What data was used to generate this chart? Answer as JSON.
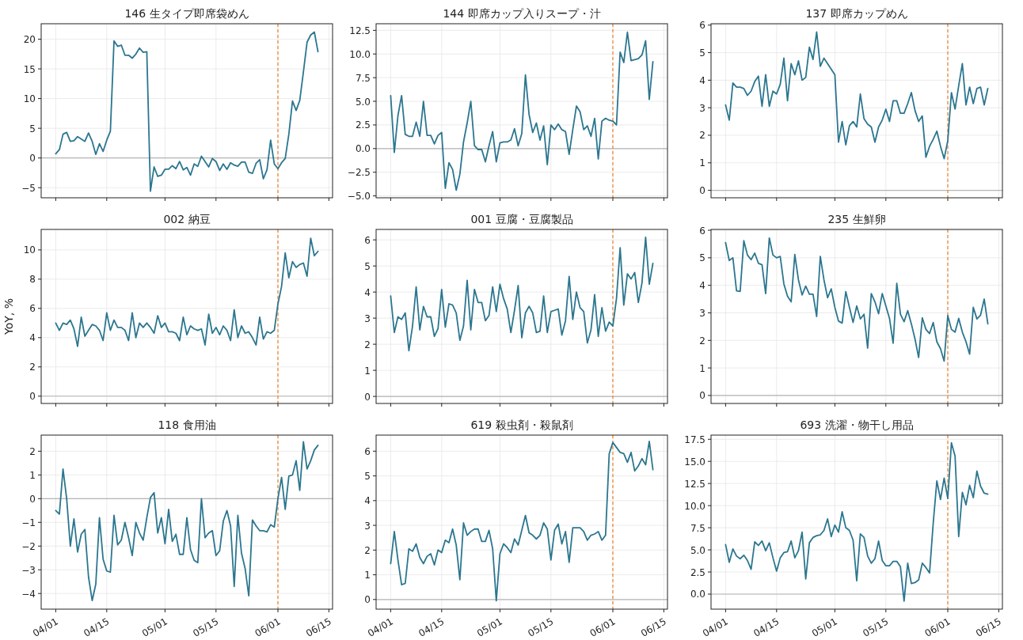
{
  "chart_data": [
    {
      "type": "line",
      "title": "146 生タイプ即席袋めん",
      "tick_labels": "y",
      "grid": true,
      "xlim": [
        "--03-28",
        "--06-16"
      ],
      "ylim": [
        -6.7,
        22.6
      ],
      "xticks": [
        {
          "value": "--04-01",
          "label": null
        },
        {
          "value": "--04-15",
          "label": null
        },
        {
          "value": "--05-01",
          "label": null
        },
        {
          "value": "--05-15",
          "label": null
        },
        {
          "value": "--06-01",
          "label": null
        },
        {
          "value": "--06-15",
          "label": null
        }
      ],
      "yticks": [
        {
          "value": -5,
          "label": "−5"
        },
        0,
        5,
        10,
        15,
        20
      ],
      "ref_lines": [
        {
          "axis": "y",
          "value": 0,
          "color": "#b5b5b5"
        },
        {
          "axis": "x",
          "value": "--06-01",
          "color": "#ee8833",
          "line_style": "dashed"
        }
      ],
      "x": [
        "--04-01",
        "--04-02",
        "--04-03",
        "--04-04",
        "--04-05",
        "--04-06",
        "--04-07",
        "--04-08",
        "--04-09",
        "--04-10",
        "--04-11",
        "--04-12",
        "--04-13",
        "--04-14",
        "--04-15",
        "--04-16",
        "--04-17",
        "--04-18",
        "--04-19",
        "--04-20",
        "--04-21",
        "--04-22",
        "--04-23",
        "--04-24",
        "--04-25",
        "--04-26",
        "--04-27",
        "--04-28",
        "--04-29",
        "--04-30",
        "--05-01",
        "--05-02",
        "--05-03",
        "--05-04",
        "--05-05",
        "--05-06",
        "--05-07",
        "--05-08",
        "--05-09",
        "--05-10",
        "--05-11",
        "--05-12",
        "--05-13",
        "--05-14",
        "--05-15",
        "--05-16",
        "--05-17",
        "--05-18",
        "--05-19",
        "--05-20",
        "--05-21",
        "--05-22",
        "--05-23",
        "--05-24",
        "--05-25",
        "--05-26",
        "--05-27",
        "--05-28",
        "--05-29",
        "--05-30",
        "--05-31",
        "--06-01",
        "--06-02",
        "--06-03",
        "--06-04",
        "--06-05",
        "--06-06",
        "--06-07",
        "--06-08",
        "--06-09",
        "--06-10",
        "--06-11",
        "--06-12"
      ],
      "series": [
        {
          "color": "#2b768f",
          "values": [
            0.7,
            1.4,
            4.0,
            4.3,
            2.8,
            2.9,
            3.6,
            3.2,
            2.8,
            4.2,
            2.8,
            0.6,
            2.4,
            1.1,
            3.0,
            4.5,
            19.7,
            18.8,
            19.0,
            17.3,
            17.3,
            16.8,
            17.5,
            18.5,
            17.8,
            17.9,
            -5.6,
            -1.5,
            -3.1,
            -2.9,
            -1.9,
            -1.9,
            -1.3,
            -1.8,
            -0.6,
            -2.0,
            -1.6,
            -2.9,
            -1.0,
            -1.4,
            0.3,
            -0.6,
            -1.5,
            -0.1,
            -0.6,
            -2.1,
            -1.0,
            -1.9,
            -0.8,
            -1.2,
            -1.4,
            -0.7,
            -0.7,
            -2.4,
            -2.6,
            -0.9,
            -0.3,
            -3.5,
            -2.0,
            3.0,
            -1.0,
            -1.8,
            -0.8,
            -0.1,
            4.0,
            9.6,
            8.0,
            9.7,
            14.5,
            19.5,
            20.7,
            21.2,
            17.9
          ]
        }
      ]
    },
    {
      "type": "line",
      "title": "144 即席カップ入りスープ・汁",
      "tick_labels": "y",
      "grid": true,
      "xlim": [
        "--03-28",
        "--06-16"
      ],
      "ylim": [
        -5.2,
        13.2
      ],
      "xticks": [
        {
          "value": "--04-01",
          "label": null
        },
        {
          "value": "--04-15",
          "label": null
        },
        {
          "value": "--05-01",
          "label": null
        },
        {
          "value": "--05-15",
          "label": null
        },
        {
          "value": "--06-01",
          "label": null
        },
        {
          "value": "--06-15",
          "label": null
        }
      ],
      "yticks": [
        {
          "value": -5,
          "label": "−5.0"
        },
        {
          "value": -2.5,
          "label": "−2.5"
        },
        {
          "value": 0,
          "label": "0.0"
        },
        {
          "value": 2.5,
          "label": "2.5"
        },
        {
          "value": 5,
          "label": "5.0"
        },
        {
          "value": 7.5,
          "label": "7.5"
        },
        {
          "value": 10,
          "label": "10.0"
        },
        {
          "value": 12.5,
          "label": "12.5"
        }
      ],
      "ref_lines": [
        {
          "axis": "y",
          "value": 0,
          "color": "#b5b5b5"
        },
        {
          "axis": "x",
          "value": "--06-01",
          "color": "#ee8833",
          "line_style": "dashed"
        }
      ],
      "x": [
        "--04-01",
        "--04-02",
        "--04-03",
        "--04-04",
        "--04-05",
        "--04-06",
        "--04-07",
        "--04-08",
        "--04-09",
        "--04-10",
        "--04-11",
        "--04-12",
        "--04-13",
        "--04-14",
        "--04-15",
        "--04-16",
        "--04-17",
        "--04-18",
        "--04-19",
        "--04-20",
        "--04-21",
        "--04-22",
        "--04-23",
        "--04-24",
        "--04-25",
        "--04-26",
        "--04-27",
        "--04-28",
        "--04-29",
        "--04-30",
        "--05-01",
        "--05-02",
        "--05-03",
        "--05-04",
        "--05-05",
        "--05-06",
        "--05-07",
        "--05-08",
        "--05-09",
        "--05-10",
        "--05-11",
        "--05-12",
        "--05-13",
        "--05-14",
        "--05-15",
        "--05-16",
        "--05-17",
        "--05-18",
        "--05-19",
        "--05-20",
        "--05-21",
        "--05-22",
        "--05-23",
        "--05-24",
        "--05-25",
        "--05-26",
        "--05-27",
        "--05-28",
        "--05-29",
        "--05-30",
        "--05-31",
        "--06-01",
        "--06-02",
        "--06-03",
        "--06-04",
        "--06-05",
        "--06-06",
        "--06-07",
        "--06-08",
        "--06-09",
        "--06-10",
        "--06-11",
        "--06-12"
      ],
      "series": [
        {
          "color": "#2b768f",
          "values": [
            5.6,
            -0.4,
            3.5,
            5.6,
            1.5,
            1.3,
            1.3,
            2.8,
            1.3,
            5.0,
            1.4,
            1.4,
            0.5,
            1.4,
            1.7,
            -4.2,
            -1.5,
            -2.2,
            -4.4,
            -2.7,
            0.7,
            2.7,
            5.0,
            0.3,
            -0.1,
            -0.1,
            -1.4,
            0.3,
            1.8,
            -1.4,
            0.6,
            0.7,
            0.7,
            0.9,
            2.1,
            0.3,
            1.6,
            7.8,
            3.6,
            1.7,
            2.7,
            0.9,
            2.4,
            -1.7,
            2.5,
            2.0,
            2.6,
            2.0,
            1.8,
            -0.6,
            2.0,
            4.5,
            3.9,
            2.0,
            2.4,
            1.3,
            3.2,
            -1.1,
            2.9,
            3.2,
            3.0,
            2.9,
            2.5,
            10.2,
            9.1,
            12.3,
            9.3,
            9.4,
            9.5,
            9.9,
            11.4,
            5.2,
            9.2
          ]
        }
      ]
    },
    {
      "type": "line",
      "title": "137 即席カップめん",
      "tick_labels": "y",
      "grid": true,
      "xlim": [
        "--03-28",
        "--06-16"
      ],
      "ylim": [
        -0.27,
        6.05
      ],
      "xticks": [
        {
          "value": "--04-01",
          "label": null
        },
        {
          "value": "--04-15",
          "label": null
        },
        {
          "value": "--05-01",
          "label": null
        },
        {
          "value": "--05-15",
          "label": null
        },
        {
          "value": "--06-01",
          "label": null
        },
        {
          "value": "--06-15",
          "label": null
        }
      ],
      "yticks": [
        0,
        1,
        2,
        3,
        4,
        5,
        6
      ],
      "ref_lines": [
        {
          "axis": "y",
          "value": 0,
          "color": "#b5b5b5"
        },
        {
          "axis": "x",
          "value": "--06-01",
          "color": "#ee8833",
          "line_style": "dashed"
        }
      ],
      "x": [
        "--04-01",
        "--04-02",
        "--04-03",
        "--04-04",
        "--04-05",
        "--04-06",
        "--04-07",
        "--04-08",
        "--04-09",
        "--04-10",
        "--04-11",
        "--04-12",
        "--04-13",
        "--04-14",
        "--04-15",
        "--04-16",
        "--04-17",
        "--04-18",
        "--04-19",
        "--04-20",
        "--04-21",
        "--04-22",
        "--04-23",
        "--04-24",
        "--04-25",
        "--04-26",
        "--04-27",
        "--04-28",
        "--04-29",
        "--04-30",
        "--05-01",
        "--05-02",
        "--05-03",
        "--05-04",
        "--05-05",
        "--05-06",
        "--05-07",
        "--05-08",
        "--05-09",
        "--05-10",
        "--05-11",
        "--05-12",
        "--05-13",
        "--05-14",
        "--05-15",
        "--05-16",
        "--05-17",
        "--05-18",
        "--05-19",
        "--05-20",
        "--05-21",
        "--05-22",
        "--05-23",
        "--05-24",
        "--05-25",
        "--05-26",
        "--05-27",
        "--05-28",
        "--05-29",
        "--05-30",
        "--05-31",
        "--06-01",
        "--06-02",
        "--06-03",
        "--06-04",
        "--06-05",
        "--06-06",
        "--06-07",
        "--06-08",
        "--06-09",
        "--06-10",
        "--06-11",
        "--06-12"
      ],
      "series": [
        {
          "color": "#2b768f",
          "values": [
            3.1,
            2.55,
            3.9,
            3.75,
            3.75,
            3.7,
            3.45,
            3.6,
            3.95,
            4.15,
            3.05,
            4.2,
            3.05,
            3.6,
            3.5,
            3.85,
            4.8,
            3.25,
            4.6,
            4.2,
            4.7,
            4.0,
            4.1,
            5.2,
            4.75,
            5.75,
            4.5,
            4.8,
            4.6,
            4.4,
            4.2,
            1.75,
            2.5,
            1.65,
            2.35,
            2.5,
            2.3,
            3.5,
            2.6,
            2.4,
            2.3,
            1.75,
            2.3,
            2.55,
            2.95,
            2.5,
            3.25,
            3.25,
            2.8,
            2.8,
            3.15,
            3.55,
            2.9,
            2.5,
            2.7,
            1.2,
            1.6,
            1.85,
            2.15,
            1.6,
            1.15,
            1.8,
            3.55,
            2.95,
            3.8,
            4.6,
            3.1,
            3.75,
            3.15,
            3.7,
            3.75,
            3.1,
            3.7
          ]
        }
      ]
    },
    {
      "type": "line",
      "title": "002 納豆",
      "ylabel": "YoY, %",
      "tick_labels": "y",
      "grid": true,
      "xlim": [
        "--03-28",
        "--06-16"
      ],
      "ylim": [
        -0.5,
        11.4
      ],
      "xticks": [
        {
          "value": "--04-01",
          "label": null
        },
        {
          "value": "--04-15",
          "label": null
        },
        {
          "value": "--05-01",
          "label": null
        },
        {
          "value": "--05-15",
          "label": null
        },
        {
          "value": "--06-01",
          "label": null
        },
        {
          "value": "--06-15",
          "label": null
        }
      ],
      "yticks": [
        0,
        2,
        4,
        6,
        8,
        10
      ],
      "ref_lines": [
        {
          "axis": "y",
          "value": 0,
          "color": "#b5b5b5"
        },
        {
          "axis": "x",
          "value": "--06-01",
          "color": "#ee8833",
          "line_style": "dashed"
        }
      ],
      "x": [
        "--04-01",
        "--04-02",
        "--04-03",
        "--04-04",
        "--04-05",
        "--04-06",
        "--04-07",
        "--04-08",
        "--04-09",
        "--04-10",
        "--04-11",
        "--04-12",
        "--04-13",
        "--04-14",
        "--04-15",
        "--04-16",
        "--04-17",
        "--04-18",
        "--04-19",
        "--04-20",
        "--04-21",
        "--04-22",
        "--04-23",
        "--04-24",
        "--04-25",
        "--04-26",
        "--04-27",
        "--04-28",
        "--04-29",
        "--04-30",
        "--05-01",
        "--05-02",
        "--05-03",
        "--05-04",
        "--05-05",
        "--05-06",
        "--05-07",
        "--05-08",
        "--05-09",
        "--05-10",
        "--05-11",
        "--05-12",
        "--05-13",
        "--05-14",
        "--05-15",
        "--05-16",
        "--05-17",
        "--05-18",
        "--05-19",
        "--05-20",
        "--05-21",
        "--05-22",
        "--05-23",
        "--05-24",
        "--05-25",
        "--05-26",
        "--05-27",
        "--05-28",
        "--05-29",
        "--05-30",
        "--05-31",
        "--06-01",
        "--06-02",
        "--06-03",
        "--06-04",
        "--06-05",
        "--06-06",
        "--06-07",
        "--06-08",
        "--06-09",
        "--06-10",
        "--06-11",
        "--06-12"
      ],
      "series": [
        {
          "color": "#2b768f",
          "values": [
            5.0,
            4.5,
            5.0,
            4.9,
            5.2,
            4.6,
            3.4,
            5.4,
            4.1,
            4.5,
            4.9,
            4.8,
            4.5,
            3.8,
            5.7,
            4.5,
            5.2,
            4.7,
            4.7,
            4.5,
            3.8,
            5.7,
            4.0,
            5.0,
            4.7,
            5.0,
            4.7,
            4.3,
            5.5,
            4.7,
            5.0,
            4.4,
            4.4,
            4.3,
            3.8,
            5.4,
            4.2,
            4.8,
            4.6,
            4.5,
            4.6,
            3.5,
            5.6,
            4.3,
            4.7,
            4.2,
            4.8,
            4.5,
            3.8,
            5.9,
            4.0,
            4.8,
            4.3,
            4.4,
            4.0,
            3.5,
            5.4,
            3.9,
            4.4,
            4.3,
            4.5,
            6.3,
            7.5,
            9.8,
            8.1,
            9.2,
            8.8,
            9.0,
            9.1,
            8.2,
            10.8,
            9.6,
            9.9
          ]
        }
      ]
    },
    {
      "type": "line",
      "title": "001 豆腐・豆腐製品",
      "tick_labels": "y",
      "grid": true,
      "xlim": [
        "--03-28",
        "--06-16"
      ],
      "ylim": [
        -0.27,
        6.4
      ],
      "xticks": [
        {
          "value": "--04-01",
          "label": null
        },
        {
          "value": "--04-15",
          "label": null
        },
        {
          "value": "--05-01",
          "label": null
        },
        {
          "value": "--05-15",
          "label": null
        },
        {
          "value": "--06-01",
          "label": null
        },
        {
          "value": "--06-15",
          "label": null
        }
      ],
      "yticks": [
        0,
        1,
        2,
        3,
        4,
        5,
        6
      ],
      "ref_lines": [
        {
          "axis": "y",
          "value": 0,
          "color": "#b5b5b5"
        },
        {
          "axis": "x",
          "value": "--06-01",
          "color": "#ee8833",
          "line_style": "dashed"
        }
      ],
      "x": [
        "--04-01",
        "--04-02",
        "--04-03",
        "--04-04",
        "--04-05",
        "--04-06",
        "--04-07",
        "--04-08",
        "--04-09",
        "--04-10",
        "--04-11",
        "--04-12",
        "--04-13",
        "--04-14",
        "--04-15",
        "--04-16",
        "--04-17",
        "--04-18",
        "--04-19",
        "--04-20",
        "--04-21",
        "--04-22",
        "--04-23",
        "--04-24",
        "--04-25",
        "--04-26",
        "--04-27",
        "--04-28",
        "--04-29",
        "--04-30",
        "--05-01",
        "--05-02",
        "--05-03",
        "--05-04",
        "--05-05",
        "--05-06",
        "--05-07",
        "--05-08",
        "--05-09",
        "--05-10",
        "--05-11",
        "--05-12",
        "--05-13",
        "--05-14",
        "--05-15",
        "--05-16",
        "--05-17",
        "--05-18",
        "--05-19",
        "--05-20",
        "--05-21",
        "--05-22",
        "--05-23",
        "--05-24",
        "--05-25",
        "--05-26",
        "--05-27",
        "--05-28",
        "--05-29",
        "--05-30",
        "--05-31",
        "--06-01",
        "--06-02",
        "--06-03",
        "--06-04",
        "--06-05",
        "--06-06",
        "--06-07",
        "--06-08",
        "--06-09",
        "--06-10",
        "--06-11",
        "--06-12"
      ],
      "series": [
        {
          "color": "#2b768f",
          "values": [
            3.85,
            2.45,
            3.05,
            2.95,
            3.2,
            1.75,
            2.7,
            4.2,
            2.55,
            3.45,
            3.05,
            3.05,
            2.3,
            2.6,
            4.1,
            2.65,
            3.55,
            3.5,
            3.2,
            2.15,
            2.7,
            4.45,
            2.55,
            4.1,
            3.6,
            3.6,
            2.9,
            3.1,
            4.2,
            3.25,
            4.3,
            3.75,
            3.35,
            2.45,
            3.3,
            4.25,
            2.25,
            3.2,
            3.45,
            3.2,
            2.45,
            2.5,
            3.85,
            2.45,
            3.25,
            3.3,
            3.35,
            2.35,
            2.9,
            4.6,
            2.95,
            4.0,
            3.4,
            3.25,
            2.05,
            2.55,
            3.9,
            2.3,
            3.4,
            2.5,
            2.85,
            2.7,
            3.75,
            5.7,
            3.5,
            4.7,
            4.5,
            4.75,
            3.6,
            4.35,
            6.1,
            4.3,
            5.1
          ]
        }
      ]
    },
    {
      "type": "line",
      "title": "235 生鮮卵",
      "tick_labels": "y",
      "grid": true,
      "xlim": [
        "--03-28",
        "--06-16"
      ],
      "ylim": [
        -0.29,
        6.03
      ],
      "xticks": [
        {
          "value": "--04-01",
          "label": null
        },
        {
          "value": "--04-15",
          "label": null
        },
        {
          "value": "--05-01",
          "label": null
        },
        {
          "value": "--05-15",
          "label": null
        },
        {
          "value": "--06-01",
          "label": null
        },
        {
          "value": "--06-15",
          "label": null
        }
      ],
      "yticks": [
        0,
        1,
        2,
        3,
        4,
        5,
        6
      ],
      "ref_lines": [
        {
          "axis": "y",
          "value": 0,
          "color": "#b5b5b5"
        },
        {
          "axis": "x",
          "value": "--06-01",
          "color": "#ee8833",
          "line_style": "dashed"
        }
      ],
      "x": [
        "--04-01",
        "--04-02",
        "--04-03",
        "--04-04",
        "--04-05",
        "--04-06",
        "--04-07",
        "--04-08",
        "--04-09",
        "--04-10",
        "--04-11",
        "--04-12",
        "--04-13",
        "--04-14",
        "--04-15",
        "--04-16",
        "--04-17",
        "--04-18",
        "--04-19",
        "--04-20",
        "--04-21",
        "--04-22",
        "--04-23",
        "--04-24",
        "--04-25",
        "--04-26",
        "--04-27",
        "--04-28",
        "--04-29",
        "--04-30",
        "--05-01",
        "--05-02",
        "--05-03",
        "--05-04",
        "--05-05",
        "--05-06",
        "--05-07",
        "--05-08",
        "--05-09",
        "--05-10",
        "--05-11",
        "--05-12",
        "--05-13",
        "--05-14",
        "--05-15",
        "--05-16",
        "--05-17",
        "--05-18",
        "--05-19",
        "--05-20",
        "--05-21",
        "--05-22",
        "--05-23",
        "--05-24",
        "--05-25",
        "--05-26",
        "--05-27",
        "--05-28",
        "--05-29",
        "--05-30",
        "--05-31",
        "--06-01",
        "--06-02",
        "--06-03",
        "--06-04",
        "--06-05",
        "--06-06",
        "--06-07",
        "--06-08",
        "--06-09",
        "--06-10",
        "--06-11",
        "--06-12"
      ],
      "series": [
        {
          "color": "#2b768f",
          "values": [
            5.55,
            4.9,
            5.0,
            3.8,
            3.78,
            5.62,
            5.1,
            4.93,
            5.17,
            4.8,
            4.75,
            3.7,
            5.72,
            5.1,
            5.0,
            5.05,
            4.05,
            3.6,
            3.4,
            5.12,
            4.2,
            3.65,
            3.97,
            3.68,
            3.68,
            2.87,
            5.05,
            4.2,
            3.55,
            3.87,
            3.2,
            2.7,
            2.63,
            3.77,
            3.2,
            2.65,
            3.25,
            2.78,
            2.95,
            1.72,
            3.7,
            3.4,
            2.97,
            3.7,
            3.25,
            2.8,
            1.9,
            4.07,
            2.95,
            2.68,
            3.08,
            2.6,
            2.05,
            1.38,
            2.82,
            2.4,
            2.25,
            2.65,
            1.95,
            1.7,
            1.25,
            2.9,
            2.4,
            2.3,
            2.8,
            2.3,
            1.95,
            1.5,
            3.2,
            2.78,
            2.92,
            3.5,
            2.6
          ]
        }
      ]
    },
    {
      "type": "line",
      "title": "118 食用油",
      "grid": true,
      "xlim": [
        "--03-28",
        "--06-16"
      ],
      "ylim": [
        -4.66,
        2.68
      ],
      "xticks": [
        {
          "value": "--04-01",
          "label": "04/01"
        },
        {
          "value": "--04-15",
          "label": "04/15"
        },
        {
          "value": "--05-01",
          "label": "05/01"
        },
        {
          "value": "--05-15",
          "label": "05/15"
        },
        {
          "value": "--06-01",
          "label": "06/01"
        },
        {
          "value": "--06-15",
          "label": "06/15"
        }
      ],
      "yticks": [
        {
          "value": -4,
          "label": "−4"
        },
        {
          "value": -3,
          "label": "−3"
        },
        {
          "value": -2,
          "label": "−2"
        },
        {
          "value": -1,
          "label": "−1"
        },
        0,
        1,
        2
      ],
      "ref_lines": [
        {
          "axis": "y",
          "value": 0,
          "color": "#b5b5b5"
        },
        {
          "axis": "x",
          "value": "--06-01",
          "color": "#ee8833",
          "line_style": "dashed"
        }
      ],
      "x": [
        "--04-01",
        "--04-02",
        "--04-03",
        "--04-04",
        "--04-05",
        "--04-06",
        "--04-07",
        "--04-08",
        "--04-09",
        "--04-10",
        "--04-11",
        "--04-12",
        "--04-13",
        "--04-14",
        "--04-15",
        "--04-16",
        "--04-17",
        "--04-18",
        "--04-19",
        "--04-20",
        "--04-21",
        "--04-22",
        "--04-23",
        "--04-24",
        "--04-25",
        "--04-26",
        "--04-27",
        "--04-28",
        "--04-29",
        "--04-30",
        "--05-01",
        "--05-02",
        "--05-03",
        "--05-04",
        "--05-05",
        "--05-06",
        "--05-07",
        "--05-08",
        "--05-09",
        "--05-10",
        "--05-11",
        "--05-12",
        "--05-13",
        "--05-14",
        "--05-15",
        "--05-16",
        "--05-17",
        "--05-18",
        "--05-19",
        "--05-20",
        "--05-21",
        "--05-22",
        "--05-23",
        "--05-24",
        "--05-25",
        "--05-26",
        "--05-27",
        "--05-28",
        "--05-29",
        "--05-30",
        "--05-31",
        "--06-01",
        "--06-02",
        "--06-03",
        "--06-04",
        "--06-05",
        "--06-06",
        "--06-07",
        "--06-08",
        "--06-09",
        "--06-10",
        "--06-11",
        "--06-12"
      ],
      "series": [
        {
          "color": "#2b768f",
          "values": [
            -0.5,
            -0.65,
            1.25,
            0.0,
            -2.0,
            -0.85,
            -2.25,
            -1.5,
            -1.3,
            -3.3,
            -4.3,
            -3.6,
            -0.8,
            -2.55,
            -3.05,
            -3.1,
            -0.7,
            -1.95,
            -1.75,
            -1.0,
            -1.65,
            -2.4,
            -1.0,
            -1.45,
            -1.75,
            -0.8,
            0.05,
            0.25,
            -1.45,
            -0.8,
            -1.9,
            -0.45,
            -1.8,
            -1.5,
            -2.35,
            -2.35,
            -0.8,
            -2.15,
            -2.6,
            -2.7,
            0.0,
            -1.65,
            -1.45,
            -1.35,
            -2.4,
            -2.2,
            -0.95,
            -0.5,
            -1.15,
            -3.7,
            -0.7,
            -2.3,
            -2.95,
            -4.1,
            -0.9,
            -1.15,
            -1.35,
            -1.35,
            -1.4,
            -1.1,
            -1.2,
            0.0,
            0.9,
            -0.45,
            0.95,
            1.0,
            1.6,
            0.35,
            2.4,
            1.25,
            1.6,
            2.05,
            2.25
          ]
        }
      ]
    },
    {
      "type": "line",
      "title": "619 殺虫剤・殺鼠剤",
      "grid": true,
      "xlim": [
        "--03-28",
        "--06-16"
      ],
      "ylim": [
        -0.39,
        6.65
      ],
      "xticks": [
        {
          "value": "--04-01",
          "label": "04/01"
        },
        {
          "value": "--04-15",
          "label": "04/15"
        },
        {
          "value": "--05-01",
          "label": "05/01"
        },
        {
          "value": "--05-15",
          "label": "05/15"
        },
        {
          "value": "--06-01",
          "label": "06/01"
        },
        {
          "value": "--06-15",
          "label": "06/15"
        }
      ],
      "yticks": [
        0,
        1,
        2,
        3,
        4,
        5,
        6
      ],
      "ref_lines": [
        {
          "axis": "y",
          "value": 0,
          "color": "#b5b5b5"
        },
        {
          "axis": "x",
          "value": "--06-01",
          "color": "#ee8833",
          "line_style": "dashed"
        }
      ],
      "x": [
        "--04-01",
        "--04-02",
        "--04-03",
        "--04-04",
        "--04-05",
        "--04-06",
        "--04-07",
        "--04-08",
        "--04-09",
        "--04-10",
        "--04-11",
        "--04-12",
        "--04-13",
        "--04-14",
        "--04-15",
        "--04-16",
        "--04-17",
        "--04-18",
        "--04-19",
        "--04-20",
        "--04-21",
        "--04-22",
        "--04-23",
        "--04-24",
        "--04-25",
        "--04-26",
        "--04-27",
        "--04-28",
        "--04-29",
        "--04-30",
        "--05-01",
        "--05-02",
        "--05-03",
        "--05-04",
        "--05-05",
        "--05-06",
        "--05-07",
        "--05-08",
        "--05-09",
        "--05-10",
        "--05-11",
        "--05-12",
        "--05-13",
        "--05-14",
        "--05-15",
        "--05-16",
        "--05-17",
        "--05-18",
        "--05-19",
        "--05-20",
        "--05-21",
        "--05-22",
        "--05-23",
        "--05-24",
        "--05-25",
        "--05-26",
        "--05-27",
        "--05-28",
        "--05-29",
        "--05-30",
        "--05-31",
        "--06-01",
        "--06-02",
        "--06-03",
        "--06-04",
        "--06-05",
        "--06-06",
        "--06-07",
        "--06-08",
        "--06-09",
        "--06-10",
        "--06-11",
        "--06-12"
      ],
      "series": [
        {
          "color": "#2b768f",
          "values": [
            1.45,
            2.75,
            1.6,
            0.6,
            0.65,
            2.05,
            1.95,
            2.25,
            1.7,
            1.45,
            1.75,
            1.85,
            1.4,
            2.0,
            1.9,
            2.4,
            2.3,
            2.85,
            2.2,
            0.8,
            3.1,
            2.6,
            2.75,
            2.85,
            2.85,
            2.35,
            2.35,
            2.8,
            2.05,
            -0.05,
            1.85,
            2.25,
            2.1,
            1.9,
            2.45,
            2.2,
            2.8,
            3.4,
            2.7,
            2.6,
            2.45,
            2.6,
            3.1,
            2.85,
            1.6,
            2.8,
            3.05,
            2.25,
            2.75,
            1.5,
            2.9,
            2.9,
            2.9,
            2.75,
            2.4,
            2.6,
            2.65,
            2.75,
            2.4,
            2.6,
            5.9,
            6.35,
            6.15,
            5.95,
            5.9,
            5.55,
            5.95,
            5.2,
            5.4,
            5.7,
            5.45,
            6.4,
            5.25
          ]
        }
      ]
    },
    {
      "type": "line",
      "title": "693 洗濯・物干し用品",
      "grid": true,
      "xlim": [
        "--03-28",
        "--06-16"
      ],
      "ylim": [
        -1.7,
        17.97
      ],
      "xticks": [
        {
          "value": "--04-01",
          "label": "04/01"
        },
        {
          "value": "--04-15",
          "label": "04/15"
        },
        {
          "value": "--05-01",
          "label": "05/01"
        },
        {
          "value": "--05-15",
          "label": "05/15"
        },
        {
          "value": "--06-01",
          "label": "06/01"
        },
        {
          "value": "--06-15",
          "label": "06/15"
        }
      ],
      "yticks": [
        {
          "value": 0,
          "label": "0.0"
        },
        {
          "value": 2.5,
          "label": "2.5"
        },
        {
          "value": 5,
          "label": "5.0"
        },
        {
          "value": 7.5,
          "label": "7.5"
        },
        {
          "value": 10,
          "label": "10.0"
        },
        {
          "value": 12.5,
          "label": "12.5"
        },
        {
          "value": 15,
          "label": "15.0"
        },
        {
          "value": 17.5,
          "label": "17.5"
        }
      ],
      "ref_lines": [
        {
          "axis": "y",
          "value": 0,
          "color": "#b5b5b5"
        },
        {
          "axis": "x",
          "value": "--06-01",
          "color": "#ee8833",
          "line_style": "dashed"
        }
      ],
      "x": [
        "--04-01",
        "--04-02",
        "--04-03",
        "--04-04",
        "--04-05",
        "--04-06",
        "--04-07",
        "--04-08",
        "--04-09",
        "--04-10",
        "--04-11",
        "--04-12",
        "--04-13",
        "--04-14",
        "--04-15",
        "--04-16",
        "--04-17",
        "--04-18",
        "--04-19",
        "--04-20",
        "--04-21",
        "--04-22",
        "--04-23",
        "--04-24",
        "--04-25",
        "--04-26",
        "--04-27",
        "--04-28",
        "--04-29",
        "--04-30",
        "--05-01",
        "--05-02",
        "--05-03",
        "--05-04",
        "--05-05",
        "--05-06",
        "--05-07",
        "--05-08",
        "--05-09",
        "--05-10",
        "--05-11",
        "--05-12",
        "--05-13",
        "--05-14",
        "--05-15",
        "--05-16",
        "--05-17",
        "--05-18",
        "--05-19",
        "--05-20",
        "--05-21",
        "--05-22",
        "--05-23",
        "--05-24",
        "--05-25",
        "--05-26",
        "--05-27",
        "--05-28",
        "--05-29",
        "--05-30",
        "--05-31",
        "--06-01",
        "--06-02",
        "--06-03",
        "--06-04",
        "--06-05",
        "--06-06",
        "--06-07",
        "--06-08",
        "--06-09",
        "--06-10",
        "--06-11",
        "--06-12"
      ],
      "series": [
        {
          "color": "#2b768f",
          "values": [
            5.6,
            3.6,
            5.1,
            4.3,
            4.0,
            4.4,
            3.8,
            2.8,
            5.9,
            5.5,
            6.0,
            4.9,
            5.8,
            4.1,
            2.6,
            4.1,
            4.7,
            4.8,
            6.0,
            4.1,
            4.9,
            7.0,
            1.7,
            5.8,
            6.4,
            6.6,
            6.7,
            7.2,
            8.5,
            6.5,
            7.8,
            7.0,
            9.3,
            7.5,
            7.2,
            6.1,
            1.5,
            6.8,
            6.4,
            4.3,
            3.5,
            4.0,
            6.0,
            3.8,
            3.2,
            3.2,
            3.7,
            3.7,
            3.1,
            -0.8,
            3.5,
            1.2,
            1.3,
            1.6,
            3.5,
            3.0,
            2.4,
            8.0,
            12.8,
            10.7,
            13.1,
            10.8,
            17.1,
            15.6,
            6.5,
            11.5,
            10.1,
            12.3,
            10.9,
            13.9,
            12.2,
            11.4,
            11.3
          ]
        }
      ]
    }
  ]
}
